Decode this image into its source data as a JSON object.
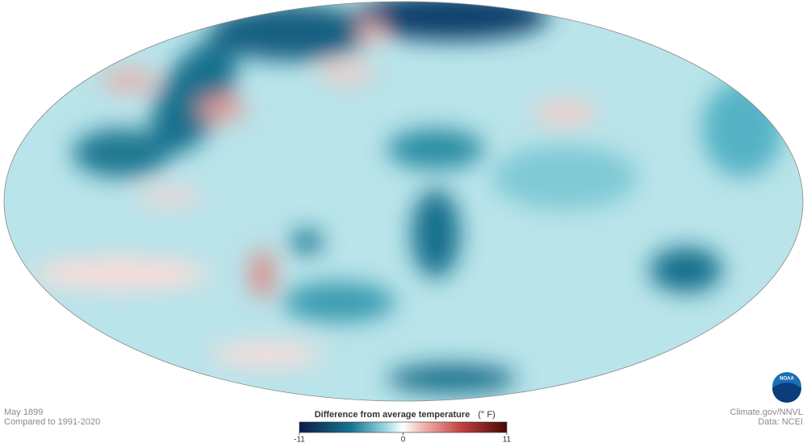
{
  "caption": {
    "date": "May 1899",
    "baseline": "Compared to 1991-2020"
  },
  "credits": {
    "source": "Climate.gov/NNVL",
    "data": "Data: NCEI"
  },
  "logo": {
    "text": "NOAA"
  },
  "legend": {
    "title": "Difference from average temperature",
    "unit": "(° F)",
    "range": [
      -11,
      11
    ],
    "ticks": [
      -11,
      0,
      11
    ]
  }
}
